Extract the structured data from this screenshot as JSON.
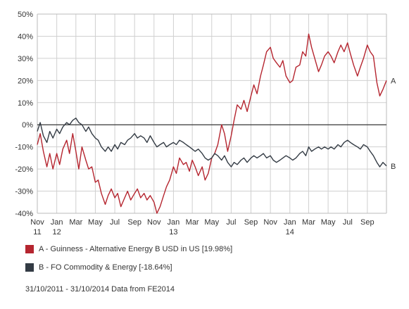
{
  "chart_data": {
    "type": "line",
    "title": "",
    "xlabel": "",
    "ylabel": "",
    "ylim": [
      -40,
      50
    ],
    "y_ticks": [
      {
        "value": 50,
        "label": "50%"
      },
      {
        "value": 40,
        "label": "40%"
      },
      {
        "value": 30,
        "label": "30%"
      },
      {
        "value": 20,
        "label": "20%"
      },
      {
        "value": 10,
        "label": "10%"
      },
      {
        "value": 0,
        "label": "0%"
      },
      {
        "value": -10,
        "label": "-10%"
      },
      {
        "value": -20,
        "label": "-20%"
      },
      {
        "value": -30,
        "label": "-30%"
      },
      {
        "value": -40,
        "label": "-40%"
      }
    ],
    "x_range": [
      "2011-11-01",
      "2014-10-31"
    ],
    "x_ticks": [
      {
        "date": "2011-11-01",
        "label": "Nov",
        "sub": "11"
      },
      {
        "date": "2012-01-01",
        "label": "Jan",
        "sub": "12"
      },
      {
        "date": "2012-03-01",
        "label": "Mar",
        "sub": ""
      },
      {
        "date": "2012-05-01",
        "label": "May",
        "sub": ""
      },
      {
        "date": "2012-07-01",
        "label": "Jul",
        "sub": ""
      },
      {
        "date": "2012-09-01",
        "label": "Sep",
        "sub": ""
      },
      {
        "date": "2012-11-01",
        "label": "Nov",
        "sub": ""
      },
      {
        "date": "2013-01-01",
        "label": "Jan",
        "sub": "13"
      },
      {
        "date": "2013-03-01",
        "label": "Mar",
        "sub": ""
      },
      {
        "date": "2013-05-01",
        "label": "May",
        "sub": ""
      },
      {
        "date": "2013-07-01",
        "label": "Jul",
        "sub": ""
      },
      {
        "date": "2013-09-01",
        "label": "Sep",
        "sub": ""
      },
      {
        "date": "2013-11-01",
        "label": "Nov",
        "sub": ""
      },
      {
        "date": "2014-01-01",
        "label": "Jan",
        "sub": "14"
      },
      {
        "date": "2014-03-01",
        "label": "Mar",
        "sub": ""
      },
      {
        "date": "2014-05-01",
        "label": "May",
        "sub": ""
      },
      {
        "date": "2014-07-01",
        "label": "Jul",
        "sub": ""
      },
      {
        "date": "2014-09-01",
        "label": "Sep",
        "sub": ""
      }
    ],
    "grid": true,
    "series": [
      {
        "name": "A - Guinness - Alternative Energy B USD in US [19.98%]",
        "end_label": "A",
        "color": "#b5252f",
        "points": [
          [
            "2011-11-01",
            -9
          ],
          [
            "2011-11-10",
            -4
          ],
          [
            "2011-11-20",
            -12
          ],
          [
            "2011-12-01",
            -19
          ],
          [
            "2011-12-10",
            -13
          ],
          [
            "2011-12-20",
            -20
          ],
          [
            "2012-01-01",
            -13
          ],
          [
            "2012-01-10",
            -18
          ],
          [
            "2012-01-20",
            -11
          ],
          [
            "2012-02-01",
            -7
          ],
          [
            "2012-02-10",
            -13
          ],
          [
            "2012-02-20",
            -4
          ],
          [
            "2012-03-01",
            -12
          ],
          [
            "2012-03-10",
            -20
          ],
          [
            "2012-03-20",
            -10
          ],
          [
            "2012-04-01",
            -16
          ],
          [
            "2012-04-10",
            -20
          ],
          [
            "2012-04-20",
            -19
          ],
          [
            "2012-05-01",
            -26
          ],
          [
            "2012-05-10",
            -25
          ],
          [
            "2012-05-20",
            -31
          ],
          [
            "2012-06-01",
            -36
          ],
          [
            "2012-06-10",
            -32
          ],
          [
            "2012-06-20",
            -29
          ],
          [
            "2012-07-01",
            -33
          ],
          [
            "2012-07-10",
            -31
          ],
          [
            "2012-07-20",
            -37
          ],
          [
            "2012-08-01",
            -33
          ],
          [
            "2012-08-10",
            -30
          ],
          [
            "2012-08-20",
            -34
          ],
          [
            "2012-09-01",
            -31
          ],
          [
            "2012-09-10",
            -29
          ],
          [
            "2012-09-20",
            -33
          ],
          [
            "2012-10-01",
            -31
          ],
          [
            "2012-10-10",
            -34
          ],
          [
            "2012-10-20",
            -32
          ],
          [
            "2012-11-01",
            -35
          ],
          [
            "2012-11-10",
            -40
          ],
          [
            "2012-11-20",
            -37
          ],
          [
            "2012-12-01",
            -32
          ],
          [
            "2012-12-10",
            -28
          ],
          [
            "2012-12-20",
            -25
          ],
          [
            "2013-01-01",
            -19
          ],
          [
            "2013-01-10",
            -22
          ],
          [
            "2013-01-20",
            -15
          ],
          [
            "2013-02-01",
            -18
          ],
          [
            "2013-02-10",
            -17
          ],
          [
            "2013-02-20",
            -21
          ],
          [
            "2013-03-01",
            -16
          ],
          [
            "2013-03-10",
            -19
          ],
          [
            "2013-03-20",
            -23
          ],
          [
            "2013-04-01",
            -19
          ],
          [
            "2013-04-10",
            -25
          ],
          [
            "2013-04-20",
            -22
          ],
          [
            "2013-05-01",
            -15
          ],
          [
            "2013-05-10",
            -13
          ],
          [
            "2013-05-20",
            -9
          ],
          [
            "2013-06-01",
            0
          ],
          [
            "2013-06-10",
            -4
          ],
          [
            "2013-06-20",
            -12
          ],
          [
            "2013-07-01",
            -5
          ],
          [
            "2013-07-10",
            2
          ],
          [
            "2013-07-20",
            9
          ],
          [
            "2013-08-01",
            7
          ],
          [
            "2013-08-10",
            11
          ],
          [
            "2013-08-20",
            6
          ],
          [
            "2013-09-01",
            13
          ],
          [
            "2013-09-10",
            18
          ],
          [
            "2013-09-20",
            14
          ],
          [
            "2013-10-01",
            22
          ],
          [
            "2013-10-10",
            27
          ],
          [
            "2013-10-20",
            33
          ],
          [
            "2013-11-01",
            35
          ],
          [
            "2013-11-10",
            30
          ],
          [
            "2013-11-20",
            28
          ],
          [
            "2013-12-01",
            26
          ],
          [
            "2013-12-10",
            29
          ],
          [
            "2013-12-20",
            22
          ],
          [
            "2014-01-01",
            19
          ],
          [
            "2014-01-10",
            20
          ],
          [
            "2014-01-20",
            26
          ],
          [
            "2014-02-01",
            27
          ],
          [
            "2014-02-10",
            33
          ],
          [
            "2014-02-20",
            31
          ],
          [
            "2014-03-01",
            41
          ],
          [
            "2014-03-10",
            35
          ],
          [
            "2014-03-20",
            30
          ],
          [
            "2014-04-01",
            24
          ],
          [
            "2014-04-10",
            27
          ],
          [
            "2014-04-20",
            31
          ],
          [
            "2014-05-01",
            33
          ],
          [
            "2014-05-10",
            31
          ],
          [
            "2014-05-20",
            28
          ],
          [
            "2014-06-01",
            33
          ],
          [
            "2014-06-10",
            36
          ],
          [
            "2014-06-20",
            33
          ],
          [
            "2014-07-01",
            37
          ],
          [
            "2014-07-10",
            32
          ],
          [
            "2014-07-20",
            27
          ],
          [
            "2014-08-01",
            22
          ],
          [
            "2014-08-10",
            26
          ],
          [
            "2014-08-20",
            30
          ],
          [
            "2014-09-01",
            36
          ],
          [
            "2014-09-10",
            33
          ],
          [
            "2014-09-20",
            31
          ],
          [
            "2014-10-01",
            19
          ],
          [
            "2014-10-10",
            13
          ],
          [
            "2014-10-20",
            16
          ],
          [
            "2014-10-31",
            19.98
          ]
        ]
      },
      {
        "name": "B - FO Commodity & Energy [-18.64%]",
        "end_label": "B",
        "color": "#333b44",
        "points": [
          [
            "2011-11-01",
            -3
          ],
          [
            "2011-11-10",
            1
          ],
          [
            "2011-11-20",
            -5
          ],
          [
            "2011-12-01",
            -8
          ],
          [
            "2011-12-10",
            -3
          ],
          [
            "2011-12-20",
            -6
          ],
          [
            "2012-01-01",
            -2
          ],
          [
            "2012-01-10",
            -4
          ],
          [
            "2012-01-20",
            -1
          ],
          [
            "2012-02-01",
            1
          ],
          [
            "2012-02-10",
            0
          ],
          [
            "2012-02-20",
            2
          ],
          [
            "2012-03-01",
            3
          ],
          [
            "2012-03-10",
            1
          ],
          [
            "2012-03-20",
            0
          ],
          [
            "2012-04-01",
            -3
          ],
          [
            "2012-04-10",
            -1
          ],
          [
            "2012-04-20",
            -4
          ],
          [
            "2012-05-01",
            -6
          ],
          [
            "2012-05-10",
            -7
          ],
          [
            "2012-05-20",
            -10
          ],
          [
            "2012-06-01",
            -12
          ],
          [
            "2012-06-10",
            -10
          ],
          [
            "2012-06-20",
            -12
          ],
          [
            "2012-07-01",
            -9
          ],
          [
            "2012-07-10",
            -11
          ],
          [
            "2012-07-20",
            -8
          ],
          [
            "2012-08-01",
            -9
          ],
          [
            "2012-08-10",
            -7
          ],
          [
            "2012-08-20",
            -6
          ],
          [
            "2012-09-01",
            -4
          ],
          [
            "2012-09-10",
            -6
          ],
          [
            "2012-09-20",
            -5
          ],
          [
            "2012-10-01",
            -6
          ],
          [
            "2012-10-10",
            -8
          ],
          [
            "2012-10-20",
            -5
          ],
          [
            "2012-11-01",
            -8
          ],
          [
            "2012-11-10",
            -10
          ],
          [
            "2012-11-20",
            -9
          ],
          [
            "2012-12-01",
            -8
          ],
          [
            "2012-12-10",
            -10
          ],
          [
            "2012-12-20",
            -9
          ],
          [
            "2013-01-01",
            -8
          ],
          [
            "2013-01-10",
            -9
          ],
          [
            "2013-01-20",
            -7
          ],
          [
            "2013-02-01",
            -8
          ],
          [
            "2013-02-10",
            -9
          ],
          [
            "2013-02-20",
            -10
          ],
          [
            "2013-03-01",
            -11
          ],
          [
            "2013-03-10",
            -12
          ],
          [
            "2013-03-20",
            -11
          ],
          [
            "2013-04-01",
            -13
          ],
          [
            "2013-04-10",
            -15
          ],
          [
            "2013-04-20",
            -16
          ],
          [
            "2013-05-01",
            -15
          ],
          [
            "2013-05-10",
            -13
          ],
          [
            "2013-05-20",
            -14
          ],
          [
            "2013-06-01",
            -16
          ],
          [
            "2013-06-10",
            -14
          ],
          [
            "2013-06-20",
            -17
          ],
          [
            "2013-07-01",
            -19
          ],
          [
            "2013-07-10",
            -17
          ],
          [
            "2013-07-20",
            -18
          ],
          [
            "2013-08-01",
            -16
          ],
          [
            "2013-08-10",
            -15
          ],
          [
            "2013-08-20",
            -17
          ],
          [
            "2013-09-01",
            -15
          ],
          [
            "2013-09-10",
            -14
          ],
          [
            "2013-09-20",
            -15
          ],
          [
            "2013-10-01",
            -14
          ],
          [
            "2013-10-10",
            -13
          ],
          [
            "2013-10-20",
            -15
          ],
          [
            "2013-11-01",
            -14
          ],
          [
            "2013-11-10",
            -16
          ],
          [
            "2013-11-20",
            -17
          ],
          [
            "2013-12-01",
            -16
          ],
          [
            "2013-12-10",
            -15
          ],
          [
            "2013-12-20",
            -14
          ],
          [
            "2014-01-01",
            -15
          ],
          [
            "2014-01-10",
            -16
          ],
          [
            "2014-01-20",
            -15
          ],
          [
            "2014-02-01",
            -13
          ],
          [
            "2014-02-10",
            -12
          ],
          [
            "2014-02-20",
            -14
          ],
          [
            "2014-03-01",
            -10
          ],
          [
            "2014-03-10",
            -12
          ],
          [
            "2014-03-20",
            -11
          ],
          [
            "2014-04-01",
            -10
          ],
          [
            "2014-04-10",
            -11
          ],
          [
            "2014-04-20",
            -10
          ],
          [
            "2014-05-01",
            -11
          ],
          [
            "2014-05-10",
            -10
          ],
          [
            "2014-05-20",
            -11
          ],
          [
            "2014-06-01",
            -9
          ],
          [
            "2014-06-10",
            -10
          ],
          [
            "2014-06-20",
            -8
          ],
          [
            "2014-07-01",
            -7
          ],
          [
            "2014-07-10",
            -8
          ],
          [
            "2014-07-20",
            -9
          ],
          [
            "2014-08-01",
            -10
          ],
          [
            "2014-08-10",
            -11
          ],
          [
            "2014-08-20",
            -9
          ],
          [
            "2014-09-01",
            -10
          ],
          [
            "2014-09-10",
            -12
          ],
          [
            "2014-09-20",
            -14
          ],
          [
            "2014-10-01",
            -17
          ],
          [
            "2014-10-10",
            -19
          ],
          [
            "2014-10-20",
            -17
          ],
          [
            "2014-10-31",
            -18.64
          ]
        ]
      }
    ]
  },
  "footer": "31/10/2011 - 31/10/2014 Data from FE2014"
}
